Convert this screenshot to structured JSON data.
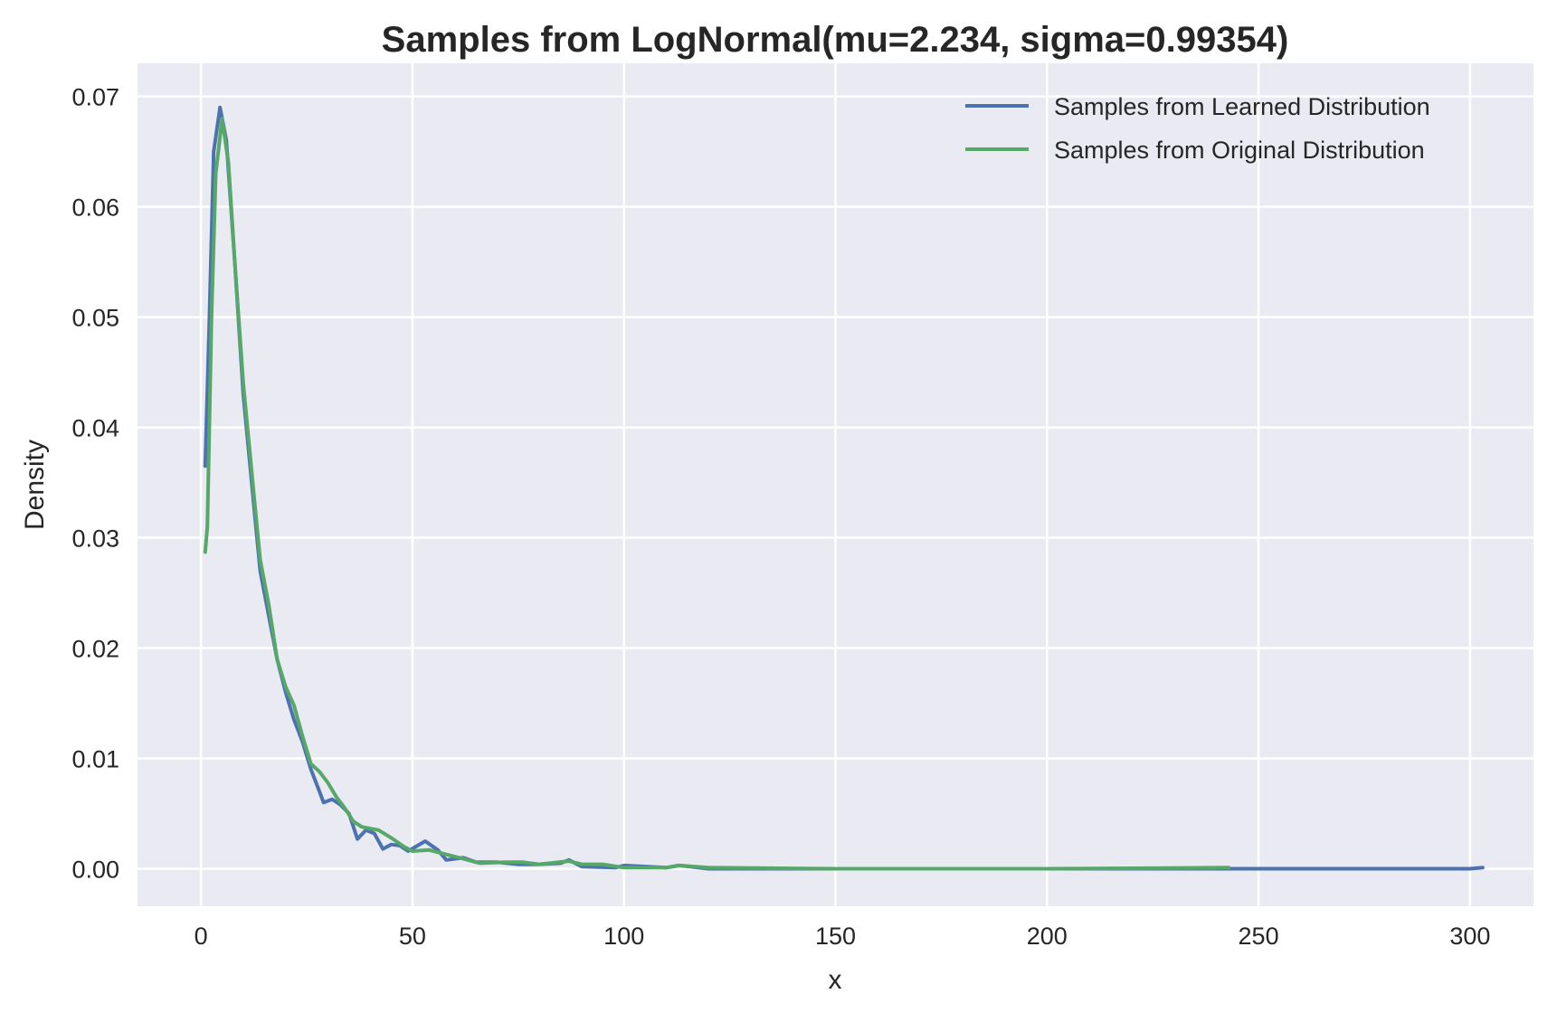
{
  "chart_data": {
    "type": "line",
    "title": "Samples from LogNormal(mu=2.234, sigma=0.99354)",
    "xlabel": "x",
    "ylabel": "Density",
    "xlim": [
      -15,
      315
    ],
    "ylim": [
      -0.0034,
      0.073
    ],
    "xticks": [
      0,
      50,
      100,
      150,
      200,
      250,
      300
    ],
    "xtick_labels": [
      "0",
      "50",
      "100",
      "150",
      "200",
      "250",
      "300"
    ],
    "yticks": [
      0,
      0.01,
      0.02,
      0.03,
      0.04,
      0.05,
      0.06,
      0.07
    ],
    "ytick_labels": [
      "0.00",
      "0.01",
      "0.02",
      "0.03",
      "0.04",
      "0.05",
      "0.06",
      "0.07"
    ],
    "grid": true,
    "background": "#eaeaf2",
    "legend_position": "top-right",
    "series": [
      {
        "name": "Samples from Learned Distribution",
        "color": "#4c72b0",
        "points": [
          [
            1,
            0.0365
          ],
          [
            2,
            0.05
          ],
          [
            3,
            0.065
          ],
          [
            4.5,
            0.069
          ],
          [
            6,
            0.066
          ],
          [
            8,
            0.055
          ],
          [
            10,
            0.043
          ],
          [
            12,
            0.035
          ],
          [
            14,
            0.027
          ],
          [
            16,
            0.023
          ],
          [
            18,
            0.019
          ],
          [
            20,
            0.016
          ],
          [
            22,
            0.0135
          ],
          [
            24,
            0.0115
          ],
          [
            26,
            0.009
          ],
          [
            28,
            0.007
          ],
          [
            29,
            0.006
          ],
          [
            31,
            0.0063
          ],
          [
            33,
            0.0058
          ],
          [
            35,
            0.005
          ],
          [
            37,
            0.0027
          ],
          [
            39,
            0.0035
          ],
          [
            41,
            0.0032
          ],
          [
            43,
            0.0018
          ],
          [
            45,
            0.0022
          ],
          [
            47,
            0.0021
          ],
          [
            49,
            0.0016
          ],
          [
            53,
            0.0025
          ],
          [
            56,
            0.0017
          ],
          [
            58,
            0.0008
          ],
          [
            62,
            0.001
          ],
          [
            65,
            0.0006
          ],
          [
            70,
            0.0006
          ],
          [
            75,
            0.0004
          ],
          [
            80,
            0.0004
          ],
          [
            85,
            0.0005
          ],
          [
            87,
            0.0008
          ],
          [
            90,
            0.0002
          ],
          [
            98,
            0.0001
          ],
          [
            100,
            0.0003
          ],
          [
            110,
            0.0001
          ],
          [
            113,
            0.0003
          ],
          [
            120,
            0
          ],
          [
            150,
            0
          ],
          [
            200,
            0
          ],
          [
            250,
            0
          ],
          [
            300,
            0
          ],
          [
            303,
            0.0001
          ]
        ]
      },
      {
        "name": "Samples from Original Distribution",
        "color": "#55a868",
        "points": [
          [
            1,
            0.0287
          ],
          [
            1.5,
            0.031
          ],
          [
            2.5,
            0.05
          ],
          [
            3.5,
            0.063
          ],
          [
            5,
            0.068
          ],
          [
            6.5,
            0.064
          ],
          [
            8,
            0.055
          ],
          [
            10,
            0.044
          ],
          [
            12,
            0.036
          ],
          [
            14,
            0.028
          ],
          [
            16,
            0.024
          ],
          [
            18,
            0.019
          ],
          [
            20,
            0.0165
          ],
          [
            22,
            0.0148
          ],
          [
            24,
            0.012
          ],
          [
            26,
            0.0095
          ],
          [
            28,
            0.0088
          ],
          [
            30,
            0.0078
          ],
          [
            32,
            0.0065
          ],
          [
            34,
            0.0055
          ],
          [
            36,
            0.0043
          ],
          [
            38,
            0.0038
          ],
          [
            42,
            0.0035
          ],
          [
            45,
            0.0028
          ],
          [
            48,
            0.002
          ],
          [
            50,
            0.0016
          ],
          [
            54,
            0.0017
          ],
          [
            58,
            0.0013
          ],
          [
            62,
            0.0009
          ],
          [
            66,
            0.0005
          ],
          [
            72,
            0.0006
          ],
          [
            76,
            0.0006
          ],
          [
            80,
            0.0004
          ],
          [
            87,
            0.0007
          ],
          [
            90,
            0.0004
          ],
          [
            95,
            0.0004
          ],
          [
            100,
            0.0001
          ],
          [
            110,
            0.0001
          ],
          [
            113,
            0.0003
          ],
          [
            120,
            0.0001
          ],
          [
            150,
            0
          ],
          [
            200,
            0
          ],
          [
            243,
            0.0001
          ]
        ]
      }
    ]
  }
}
